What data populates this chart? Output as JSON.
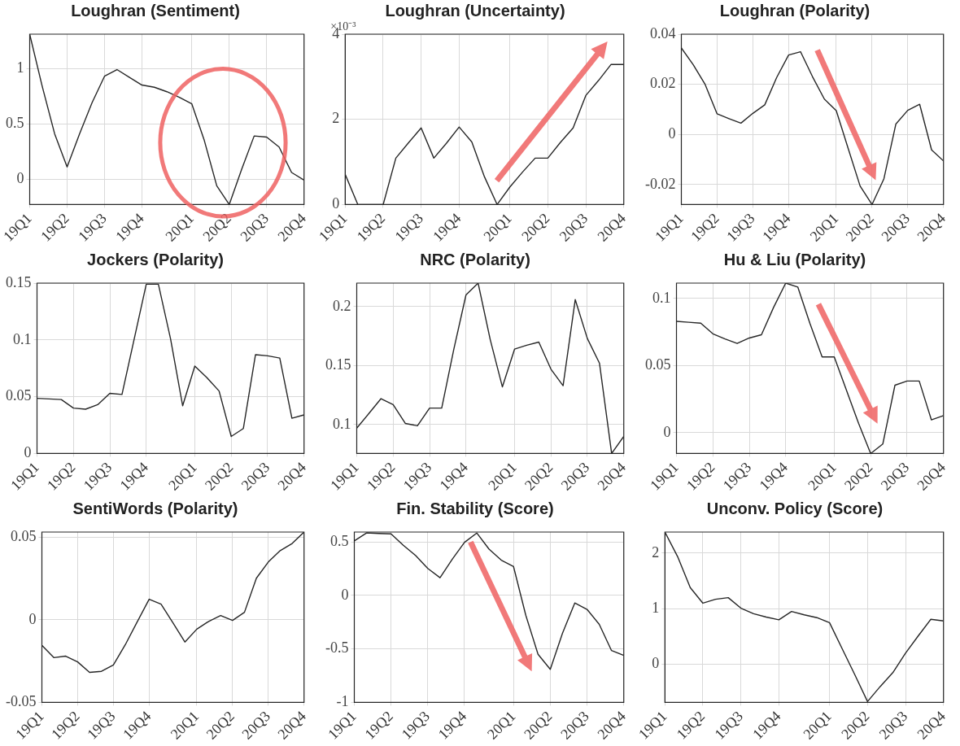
{
  "chart_data": [
    {
      "type": "line",
      "title": "Loughran (Sentiment)",
      "color": "#262626",
      "grid": true,
      "categories": [
        "19Q1",
        null,
        null,
        "19Q2",
        null,
        null,
        "19Q3",
        null,
        null,
        "19Q4",
        null,
        null,
        null,
        "20Q1",
        null,
        null,
        "20Q2",
        null,
        null,
        "20Q3",
        null,
        null,
        "20Q4"
      ],
      "ylim": [
        -0.23,
        1.31
      ],
      "yticks": [
        0,
        0.5,
        1
      ],
      "values": [
        1.31,
        0.84,
        0.41,
        0.11,
        0.41,
        0.69,
        0.93,
        0.99,
        0.92,
        0.85,
        0.83,
        0.79,
        0.74,
        0.68,
        0.35,
        -0.06,
        -0.23,
        0.09,
        0.39,
        0.38,
        0.29,
        0.06,
        -0.01
      ]
    },
    {
      "type": "line",
      "title": "Loughran (Uncertainty)",
      "color": "#262626",
      "grid": true,
      "annotations": [
        "×10⁻³"
      ],
      "categories": [
        "19Q1",
        null,
        null,
        "19Q2",
        null,
        null,
        "19Q3",
        null,
        null,
        "19Q4",
        null,
        null,
        null,
        "20Q1",
        null,
        null,
        "20Q2",
        null,
        null,
        "20Q3",
        null,
        null,
        "20Q4"
      ],
      "ylim": [
        0,
        4
      ],
      "yticks": [
        0,
        2,
        4
      ],
      "values": [
        0.71,
        0,
        0,
        0,
        1.09,
        1.45,
        1.8,
        1.09,
        1.44,
        1.82,
        1.47,
        0.65,
        0,
        0.41,
        0.76,
        1.09,
        1.09,
        1.46,
        1.8,
        2.56,
        2.91,
        3.29,
        3.29
      ]
    },
    {
      "type": "line",
      "title": "Loughran (Polarity)",
      "color": "#262626",
      "grid": true,
      "categories": [
        "19Q1",
        null,
        null,
        "19Q2",
        null,
        null,
        "19Q3",
        null,
        null,
        "19Q4",
        null,
        null,
        null,
        "20Q1",
        null,
        null,
        "20Q2",
        null,
        null,
        "20Q3",
        null,
        null,
        "20Q4"
      ],
      "ylim": [
        -0.028,
        0.04
      ],
      "yticks": [
        -0.02,
        0,
        0.02,
        0.04
      ],
      "values": [
        0.0345,
        0.0278,
        0.0199,
        0.0082,
        0.0063,
        0.0045,
        0.0084,
        0.0118,
        0.0227,
        0.0317,
        0.033,
        0.0231,
        0.0141,
        0.0095,
        -0.0056,
        -0.0206,
        -0.028,
        -0.0177,
        0.0041,
        0.0096,
        0.012,
        -0.0062,
        -0.0106
      ]
    },
    {
      "type": "line",
      "title": "Jockers (Polarity)",
      "color": "#262626",
      "grid": true,
      "categories": [
        "19Q1",
        null,
        null,
        "19Q2",
        null,
        null,
        "19Q3",
        null,
        null,
        "19Q4",
        null,
        null,
        null,
        "20Q1",
        null,
        null,
        "20Q2",
        null,
        null,
        "20Q3",
        null,
        null,
        "20Q4"
      ],
      "ylim": [
        0,
        0.15
      ],
      "yticks": [
        0,
        0.05,
        0.1,
        0.15
      ],
      "values": [
        0.0486,
        0.048,
        0.0475,
        0.04,
        0.039,
        0.043,
        0.053,
        0.052,
        0.1005,
        0.149,
        0.149,
        0.101,
        0.042,
        0.077,
        0.0667,
        0.055,
        0.015,
        0.022,
        0.087,
        0.086,
        0.084,
        0.031,
        0.034
      ]
    },
    {
      "type": "line",
      "title": "NRC (Polarity)",
      "color": "#262626",
      "grid": true,
      "categories": [
        "19Q1",
        null,
        null,
        "19Q2",
        null,
        null,
        "19Q3",
        null,
        null,
        "19Q4",
        null,
        null,
        null,
        "20Q1",
        null,
        null,
        "20Q2",
        null,
        null,
        "20Q3",
        null,
        null,
        "20Q4"
      ],
      "ylim": [
        0.0755,
        0.22
      ],
      "yticks": [
        0.1,
        0.15,
        0.2
      ],
      "values": [
        0.097,
        0.1094,
        0.122,
        0.117,
        0.101,
        0.099,
        0.114,
        0.114,
        0.164,
        0.21,
        0.22,
        0.172,
        0.132,
        0.164,
        0.1673,
        0.17,
        0.147,
        0.133,
        0.206,
        0.173,
        0.152,
        0.0755,
        0.09
      ]
    },
    {
      "type": "line",
      "title": "Hu & Liu (Polarity)",
      "color": "#262626",
      "grid": true,
      "categories": [
        "19Q1",
        null,
        null,
        "19Q2",
        null,
        null,
        "19Q3",
        null,
        null,
        "19Q4",
        null,
        null,
        null,
        "20Q1",
        null,
        null,
        "20Q2",
        null,
        null,
        "20Q3",
        null,
        null,
        "20Q4"
      ],
      "ylim": [
        -0.0155,
        0.1115
      ],
      "yticks": [
        0,
        0.05,
        0.1
      ],
      "values": [
        0.083,
        0.0823,
        0.0816,
        0.0737,
        0.0699,
        0.0665,
        0.0706,
        0.073,
        0.0934,
        0.1115,
        0.1085,
        0.0813,
        0.0565,
        0.0565,
        0.0318,
        0.007,
        -0.0155,
        -0.0084,
        0.0354,
        0.0385,
        0.0385,
        0.0096,
        0.0127
      ]
    },
    {
      "type": "line",
      "title": "SentiWords (Polarity)",
      "color": "#262626",
      "grid": true,
      "categories": [
        "19Q1",
        null,
        null,
        "19Q2",
        null,
        null,
        "19Q3",
        null,
        null,
        "19Q4",
        null,
        null,
        null,
        "20Q1",
        null,
        null,
        "20Q2",
        null,
        null,
        "20Q3",
        null,
        null,
        "20Q4"
      ],
      "ylim": [
        -0.05,
        0.053
      ],
      "yticks": [
        -0.05,
        0,
        0.05
      ],
      "values": [
        -0.0155,
        -0.0229,
        -0.022,
        -0.0255,
        -0.0318,
        -0.0312,
        -0.0273,
        -0.0151,
        -0.0013,
        0.0124,
        0.0094,
        -0.0019,
        -0.0135,
        -0.0057,
        -0.001,
        0.0025,
        -0.0004,
        0.0045,
        0.0251,
        0.0349,
        0.0418,
        0.0461,
        0.053
      ]
    },
    {
      "type": "line",
      "title": "Fin. Stability (Score)",
      "color": "#262626",
      "grid": true,
      "categories": [
        "19Q1",
        null,
        null,
        "19Q2",
        null,
        null,
        "19Q3",
        null,
        null,
        "19Q4",
        null,
        null,
        null,
        "20Q1",
        null,
        null,
        "20Q2",
        null,
        null,
        "20Q3",
        null,
        null,
        "20Q4"
      ],
      "ylim": [
        -1,
        0.593
      ],
      "yticks": [
        -1,
        -0.5,
        0,
        0.5
      ],
      "values": [
        0.51,
        0.585,
        0.58,
        0.576,
        0.469,
        0.374,
        0.253,
        0.166,
        0.339,
        0.497,
        0.584,
        0.433,
        0.33,
        0.27,
        -0.185,
        -0.55,
        -0.69,
        -0.352,
        -0.07,
        -0.13,
        -0.27,
        -0.515,
        -0.56
      ]
    },
    {
      "type": "line",
      "title": "Unconv. Policy (Score)",
      "color": "#262626",
      "grid": true,
      "categories": [
        "19Q1",
        null,
        null,
        "19Q2",
        null,
        null,
        "19Q3",
        null,
        null,
        "19Q4",
        null,
        null,
        null,
        "20Q1",
        null,
        null,
        "20Q2",
        null,
        null,
        "20Q3",
        null,
        null,
        "20Q4"
      ],
      "ylim": [
        -0.686,
        2.38
      ],
      "yticks": [
        0,
        1,
        2
      ],
      "values": [
        2.38,
        1.94,
        1.38,
        1.1,
        1.17,
        1.2,
        1.01,
        0.91,
        0.85,
        0.8,
        0.95,
        0.89,
        0.84,
        0.75,
        0.28,
        -0.19,
        -0.67,
        -0.4,
        -0.15,
        0.2,
        0.51,
        0.81,
        0.78
      ]
    }
  ]
}
